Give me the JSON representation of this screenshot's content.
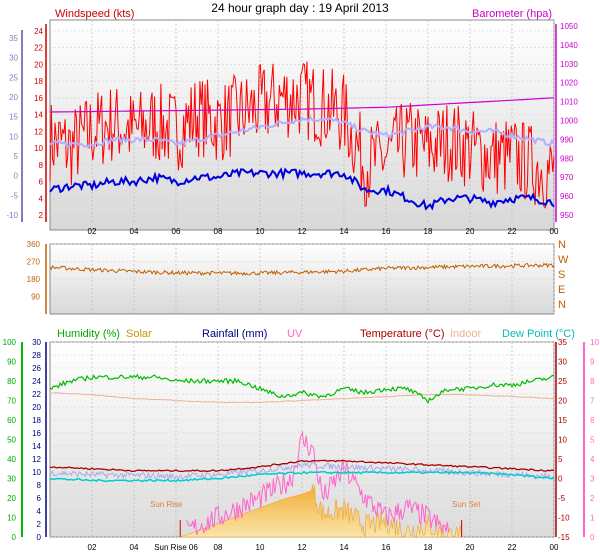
{
  "title": "24 hour graph day : 19 April 2013",
  "colors": {
    "wind": "#ff0000",
    "avg_wind": "#0000dd",
    "gust_avg": "#b0b0ff",
    "baro": "#cc00cc",
    "dir": "#c06000",
    "humidity": "#00bb00",
    "solar": "#f7b733",
    "rain": "#000080",
    "uv": "#ff66cc",
    "temp": "#aa0000",
    "indoor": "#f0b090",
    "dew": "#00cccc",
    "plot_bg_top": "#ffffff",
    "plot_bg_bottom": "#d8d8d8"
  },
  "x_ticks": [
    "02",
    "04",
    "06",
    "08",
    "10",
    "12",
    "14",
    "16",
    "18",
    "20",
    "22",
    "00"
  ],
  "chart_data": [
    {
      "type": "line",
      "labels": {
        "left": "Windspeed (kts)",
        "right": "Barometer (hpa)"
      },
      "axes": {
        "left_outer": {
          "ticks": [
            "-10",
            "-5",
            "0",
            "5",
            "10",
            "15",
            "20",
            "25",
            "30",
            "35"
          ]
        },
        "left_inner": {
          "ticks": [
            "2",
            "4",
            "6",
            "8",
            "10",
            "12",
            "14",
            "16",
            "18",
            "20",
            "22",
            "24"
          ],
          "range": [
            2,
            24
          ]
        },
        "right": {
          "ticks": [
            "950",
            "960",
            "970",
            "980",
            "990",
            "1000",
            "1010",
            "1020",
            "1030",
            "1040",
            "1050"
          ],
          "range": [
            950,
            1050
          ]
        }
      },
      "x_range_hours": [
        0,
        24
      ],
      "series": [
        {
          "name": "Windspeed (kts)",
          "x": [
            0,
            1,
            2,
            3,
            4,
            5,
            6,
            7,
            8,
            9,
            10,
            11,
            12,
            13,
            14,
            15,
            16,
            17,
            18,
            19,
            20,
            21,
            22,
            23,
            24
          ],
          "values": [
            11,
            10,
            12,
            13,
            12,
            13,
            12,
            14,
            13,
            14,
            15,
            16,
            16,
            15,
            14,
            8,
            9,
            11,
            10,
            11,
            10,
            9,
            9,
            8,
            7
          ]
        },
        {
          "x": [
            0,
            1,
            2,
            3,
            4,
            5,
            6,
            7,
            8,
            9,
            10,
            11,
            12,
            13,
            14,
            15,
            16,
            17,
            18,
            19,
            20,
            21,
            22,
            23,
            24
          ],
          "values": [
            5,
            5.5,
            5.5,
            6,
            6,
            6.5,
            6,
            6.5,
            6.5,
            7,
            7,
            7,
            7,
            7,
            7,
            5,
            5,
            4,
            3,
            4,
            4,
            3.5,
            4,
            4,
            3.5
          ]
        },
        {
          "x": [
            0,
            1,
            2,
            3,
            4,
            5,
            6,
            7,
            8,
            9,
            10,
            11,
            12,
            13,
            14,
            15,
            16,
            17,
            18,
            19,
            20,
            21,
            22,
            23,
            24
          ],
          "values": [
            10.5,
            10.5,
            10.5,
            11,
            11,
            11,
            10.5,
            11,
            11.5,
            12,
            12.5,
            13,
            13.5,
            13.5,
            13,
            12,
            11.5,
            12,
            12.5,
            12.5,
            12,
            12,
            11.5,
            11,
            10.5
          ]
        },
        {
          "name": "Barometer (hpa)",
          "x": [
            0,
            4,
            8,
            12,
            16,
            20,
            24
          ],
          "values": [
            1004.5,
            1005,
            1005.5,
            1006,
            1007,
            1009.5,
            1012
          ]
        }
      ]
    },
    {
      "type": "line",
      "labels": {
        "right": [
          "N",
          "W",
          "S",
          "E",
          "N"
        ]
      },
      "axes": {
        "left": {
          "ticks": [
            "90",
            "180",
            "270",
            "360"
          ],
          "range": [
            0,
            360
          ]
        }
      },
      "series": [
        {
          "x": [
            0,
            2,
            4,
            6,
            8,
            10,
            12,
            14,
            16,
            18,
            20,
            22,
            24
          ],
          "values": [
            240,
            228,
            218,
            212,
            210,
            210,
            215,
            220,
            235,
            240,
            245,
            248,
            252
          ]
        }
      ]
    },
    {
      "type": "area",
      "labels": {
        "humidity": "Humidity  (%)",
        "solar": "Solar",
        "rain": "Rainfall (mm)",
        "uv": "UV",
        "temp": "Temperature (°C)",
        "indoor": "Indoor",
        "dew": "Dew Point (°C)",
        "sunrise": "Sun Rise",
        "sunset": "Sun Set",
        "sunrise_tick": "Sun Rise 06"
      },
      "axes": {
        "humidity": {
          "ticks": [
            "0",
            "10",
            "20",
            "30",
            "40",
            "50",
            "60",
            "70",
            "80",
            "90",
            "100"
          ],
          "range": [
            0,
            100
          ]
        },
        "rain": {
          "ticks": [
            "0",
            "2",
            "4",
            "6",
            "8",
            "10",
            "12",
            "14",
            "16",
            "18",
            "20",
            "22",
            "24",
            "26",
            "28",
            "30"
          ],
          "range": [
            0,
            30
          ]
        },
        "temp": {
          "ticks": [
            "-15",
            "-10",
            "-5",
            "0",
            "5",
            "10",
            "15",
            "20",
            "25",
            "30",
            "35"
          ],
          "range": [
            -15,
            35
          ]
        },
        "uv": {
          "ticks": [
            "0",
            "1",
            "2",
            "3",
            "4",
            "5",
            "6",
            "7",
            "8",
            "9",
            "10"
          ],
          "range": [
            0,
            10
          ]
        }
      },
      "series": [
        {
          "name": "Humidity",
          "x": [
            0,
            1,
            2,
            3,
            4,
            5,
            6,
            7,
            8,
            9,
            10,
            11,
            12,
            13,
            14,
            15,
            16,
            17,
            18,
            19,
            20,
            21,
            22,
            23,
            24
          ],
          "values": [
            76,
            80,
            82,
            82,
            82,
            82,
            80,
            80,
            80,
            80,
            76,
            72,
            74,
            72,
            76,
            74,
            76,
            76,
            70,
            76,
            76,
            78,
            78,
            80,
            82
          ]
        },
        {
          "name": "Temperature",
          "x": [
            0,
            2,
            4,
            6,
            8,
            10,
            12,
            14,
            16,
            18,
            20,
            22,
            24
          ],
          "values": [
            3,
            2.5,
            2,
            2,
            2,
            3,
            4.5,
            4.5,
            4,
            3.5,
            3,
            2.5,
            2
          ]
        },
        {
          "name": "Indoor",
          "x": [
            0,
            2,
            4,
            6,
            8,
            10,
            12,
            14,
            16,
            18,
            20,
            22,
            24
          ],
          "values": [
            22,
            21.5,
            20.5,
            20,
            19.5,
            19.5,
            20,
            20.5,
            21,
            21.5,
            21.5,
            21,
            20.5
          ]
        },
        {
          "name": "Dew Point",
          "x": [
            0,
            2,
            4,
            6,
            8,
            10,
            12,
            14,
            16,
            18,
            20,
            22,
            24
          ],
          "values": [
            0,
            -0.5,
            -0.5,
            -0.5,
            0,
            1,
            1.5,
            1.5,
            1.5,
            1.5,
            1.5,
            1,
            0
          ]
        },
        {
          "x": [
            0,
            2,
            4,
            6,
            8,
            10,
            12,
            14,
            16,
            18,
            20,
            22,
            24
          ],
          "values": [
            1.5,
            1,
            0.8,
            0.5,
            1,
            2,
            3.5,
            3,
            2.5,
            2,
            1.5,
            1,
            0.5
          ]
        },
        {
          "name": "Solar",
          "x": [
            6.2,
            7,
            8,
            9,
            10,
            11,
            12,
            12.5,
            13,
            14,
            15,
            16,
            17,
            18,
            19,
            19.6
          ],
          "values": [
            0,
            1.5,
            3.5,
            5.5,
            7.5,
            9.5,
            11,
            12,
            6,
            7,
            3,
            4,
            1.5,
            3,
            0.5,
            0
          ]
        },
        {
          "name": "UV",
          "x": [
            6.5,
            8,
            10,
            11.5,
            12,
            12.5,
            13,
            14,
            15,
            16,
            17,
            18,
            19
          ],
          "values": [
            0.3,
            1,
            2,
            3,
            5,
            4.5,
            2,
            3.5,
            2,
            1,
            1.5,
            1,
            0.2
          ]
        }
      ]
    }
  ]
}
